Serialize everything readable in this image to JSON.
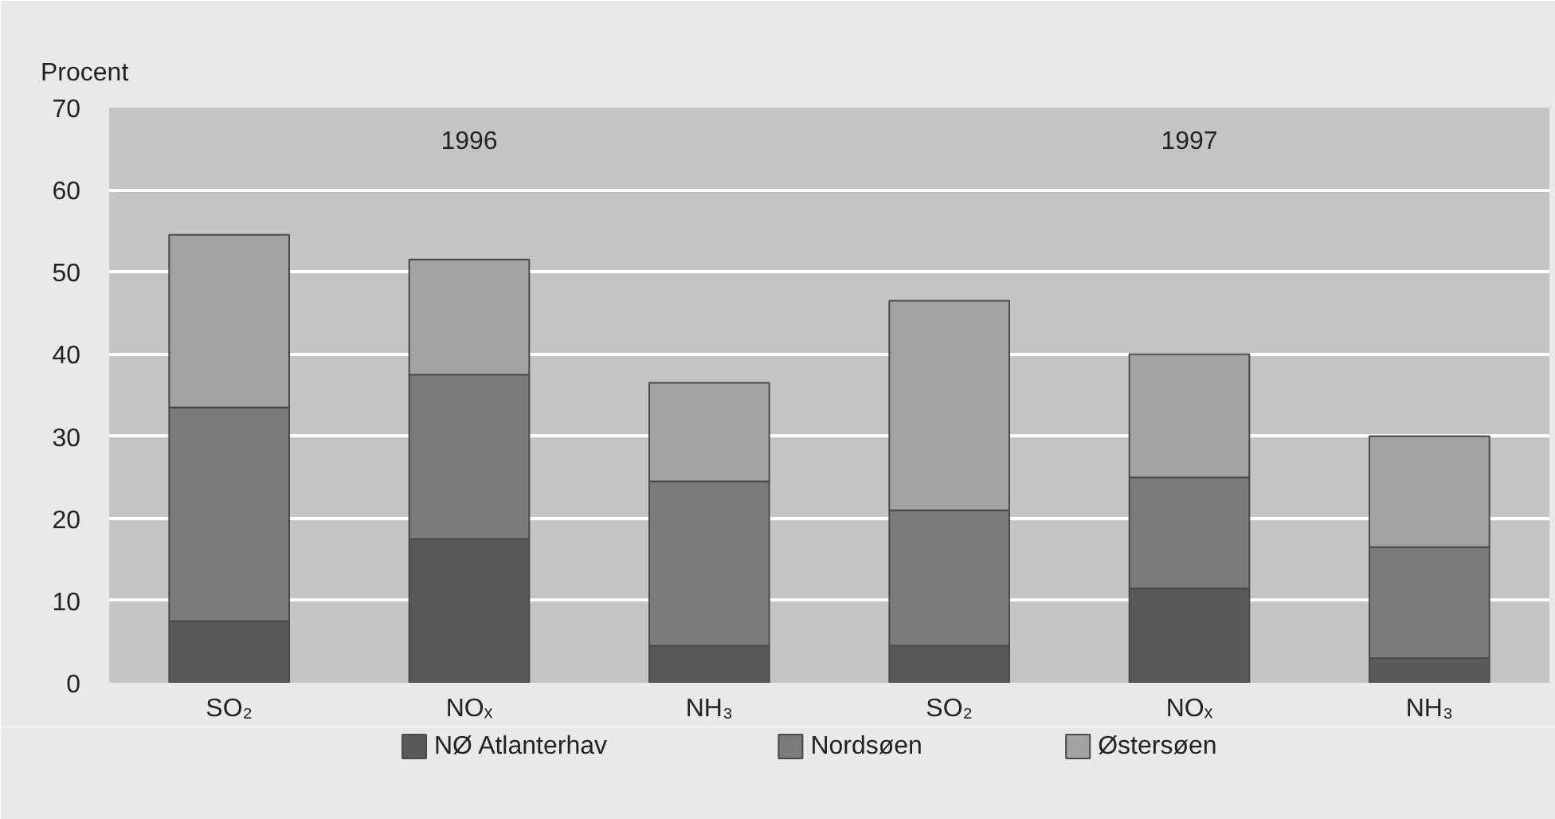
{
  "chart_data": {
    "type": "bar",
    "stacked": true,
    "ylabel": "Procent",
    "categories": [
      "SO₂",
      "NOₓ",
      "NH₃",
      "SO₂",
      "NOₓ",
      "NH₃"
    ],
    "annotations": [
      "1996",
      "1997"
    ],
    "series": [
      {
        "name": "NØ Atlanterhav",
        "color": "#595959",
        "values": [
          7.5,
          17.5,
          4.5,
          4.5,
          11.5,
          3
        ]
      },
      {
        "name": "Nordsøen",
        "color": "#7b7b7b",
        "values": [
          26,
          20,
          20,
          16.5,
          13.5,
          13.5
        ]
      },
      {
        "name": "Østersøen",
        "color": "#a3a3a3",
        "values": [
          21,
          14,
          12,
          25.5,
          15,
          13.5
        ]
      }
    ],
    "ylim": [
      0,
      70
    ],
    "yticks": [
      0,
      10,
      20,
      30,
      40,
      50,
      60,
      70
    ],
    "grid": "y",
    "legend": "bottom"
  }
}
